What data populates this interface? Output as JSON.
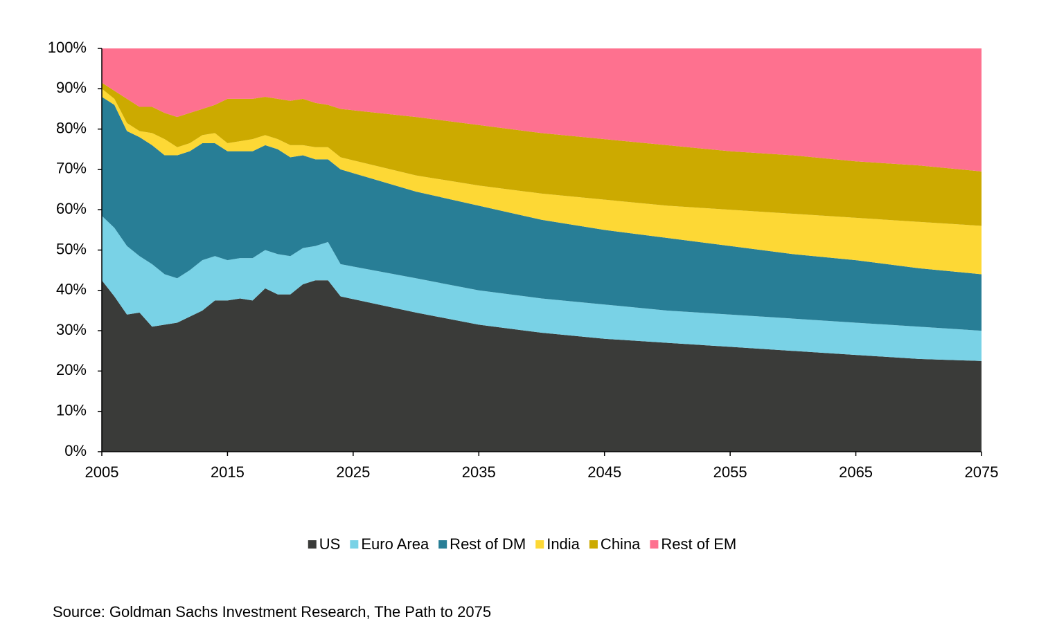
{
  "chart_data": {
    "type": "stacked_area",
    "x": [
      2005,
      2006,
      2007,
      2008,
      2009,
      2010,
      2011,
      2012,
      2013,
      2014,
      2015,
      2016,
      2017,
      2018,
      2019,
      2020,
      2021,
      2022,
      2023,
      2024,
      2030,
      2035,
      2040,
      2045,
      2050,
      2055,
      2060,
      2065,
      2070,
      2075
    ],
    "series": [
      {
        "name": "US",
        "color": "#3a3b39",
        "values": [
          42.5,
          38.5,
          34,
          34.5,
          31,
          31.5,
          32,
          33.5,
          35,
          37.5,
          37.5,
          38,
          37.5,
          40.5,
          39,
          39,
          41.5,
          42.5,
          42.5,
          38.5,
          34.5,
          31.5,
          29.5,
          28,
          27,
          26,
          25,
          24,
          23,
          22.5
        ]
      },
      {
        "name": "Euro Area",
        "color": "#79d2e6",
        "values": [
          16,
          17,
          17,
          14,
          15.5,
          12.5,
          11,
          11.5,
          12.5,
          11,
          10,
          10,
          10.5,
          9.5,
          10,
          9.5,
          9,
          8.5,
          9.5,
          8,
          8.5,
          8.5,
          8.5,
          8.5,
          8,
          8,
          8,
          8,
          8,
          7.5
        ]
      },
      {
        "name": "Rest of DM",
        "color": "#287e96",
        "values": [
          29.5,
          30.5,
          28.5,
          29.5,
          29.5,
          29.5,
          30.5,
          29.5,
          29,
          28,
          27,
          26.5,
          26.5,
          26,
          26,
          24.5,
          23,
          21.5,
          20.5,
          23.5,
          21.5,
          21,
          19.5,
          18.5,
          18,
          17,
          16,
          15.5,
          14.5,
          14
        ]
      },
      {
        "name": "India",
        "color": "#fdd835",
        "values": [
          2,
          1.5,
          2,
          1.5,
          3,
          4,
          2,
          2,
          2,
          2.5,
          2,
          2.5,
          3,
          2.5,
          2.5,
          3,
          2.5,
          3,
          3,
          3,
          4,
          5,
          6.5,
          7.5,
          8,
          9,
          10,
          10.5,
          11.5,
          12
        ]
      },
      {
        "name": "China",
        "color": "#ccaa00",
        "values": [
          1.5,
          2,
          6,
          6,
          6.5,
          6.5,
          7.5,
          7.5,
          6.5,
          7,
          11,
          10.5,
          10,
          9.5,
          10,
          11,
          11.5,
          11,
          10.5,
          12,
          14.5,
          15,
          15,
          15,
          15,
          14.5,
          14.5,
          14,
          14,
          13.5
        ]
      },
      {
        "name": "Rest of EM",
        "color": "#fe718f",
        "values": [
          8.5,
          10.5,
          12.5,
          14.5,
          14.5,
          16,
          17,
          16,
          15,
          14,
          12.5,
          12.5,
          12.5,
          12,
          12.5,
          13,
          12.5,
          13.5,
          14,
          15,
          17,
          19,
          21,
          22.5,
          24,
          25.5,
          26.5,
          28,
          29,
          30.5
        ]
      }
    ],
    "xlim": [
      2005,
      2075
    ],
    "xticks": [
      2005,
      2015,
      2025,
      2035,
      2045,
      2055,
      2065,
      2075
    ],
    "ylim": [
      0,
      100
    ],
    "yticks": [
      {
        "value": 0,
        "label": "0%"
      },
      {
        "value": 10,
        "label": "10%"
      },
      {
        "value": 20,
        "label": "20%"
      },
      {
        "value": 30,
        "label": "30%"
      },
      {
        "value": 40,
        "label": "40%"
      },
      {
        "value": 50,
        "label": "50%"
      },
      {
        "value": 60,
        "label": "60%"
      },
      {
        "value": 70,
        "label": "70%"
      },
      {
        "value": 80,
        "label": "80%"
      },
      {
        "value": 90,
        "label": "90%"
      },
      {
        "value": 100,
        "label": "100%"
      }
    ],
    "source": "Source: Goldman Sachs Investment Research, The Path to 2075"
  }
}
